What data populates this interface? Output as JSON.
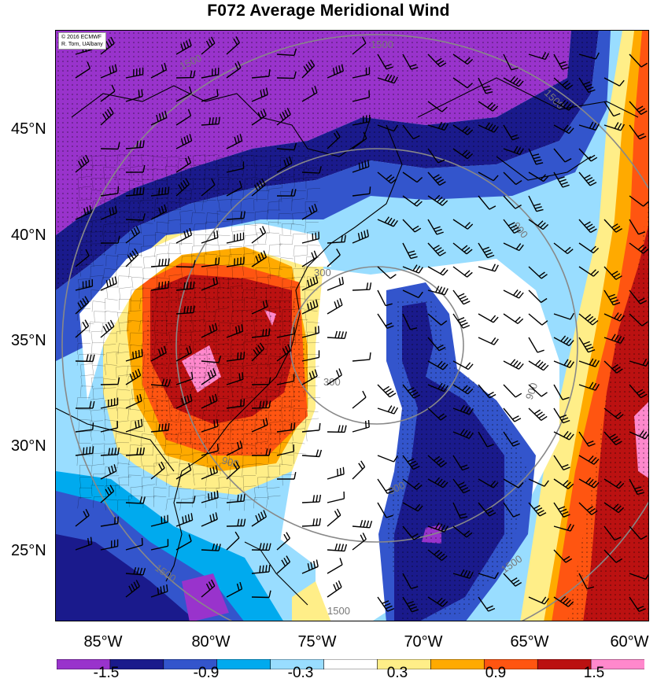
{
  "title": "F072 Average Meridional Wind",
  "credit": {
    "line1": "© 2016 ECMWF",
    "line2": "R. Torn, UAlbany"
  },
  "latitude_labels": [
    "45°N",
    "40°N",
    "35°N",
    "30°N",
    "25°N"
  ],
  "longitude_labels": [
    "85°W",
    "80°W",
    "75°W",
    "70°W",
    "65°W",
    "60°W"
  ],
  "colorbar": {
    "labels": [
      "-1.5",
      "-0.9",
      "-0.3",
      "0.3",
      "0.9",
      "1.5"
    ],
    "colors": [
      "#9933cc",
      "#1a1a8c",
      "#3355cc",
      "#00aaee",
      "#99ddff",
      "#ffffff",
      "#ffee88",
      "#ffaa00",
      "#ff5511",
      "#bb1111",
      "#ff88cc"
    ]
  },
  "contours": {
    "labels": [
      "300",
      "900",
      "1500"
    ],
    "color": "#888888"
  },
  "colors": {
    "land_line": "#000000",
    "background": "#ffffff"
  }
}
